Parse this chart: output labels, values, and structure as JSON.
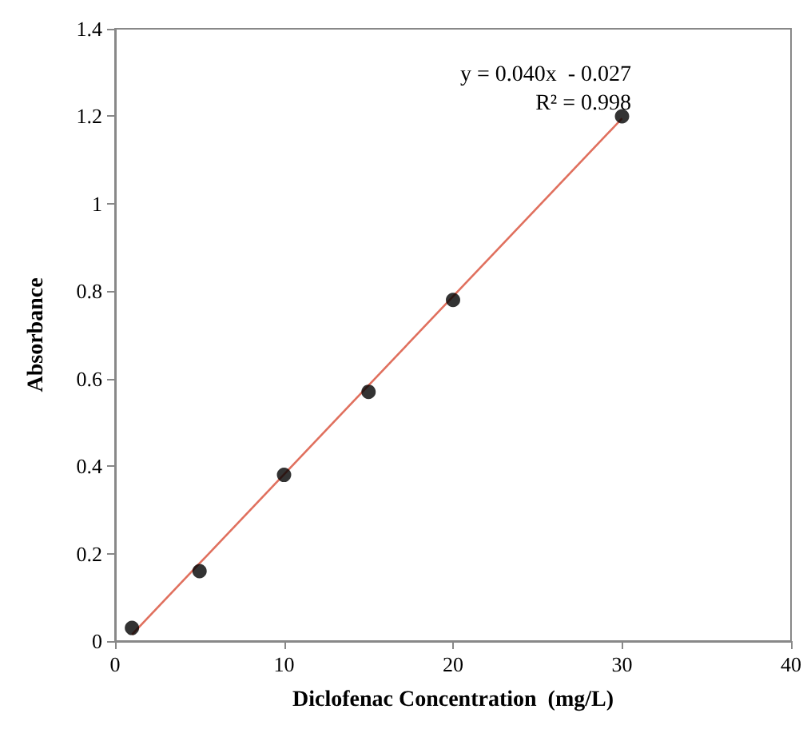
{
  "chart_data": {
    "type": "scatter",
    "xlabel": "Diclofenac Concentration  (mg/L)",
    "ylabel": "Absorbance",
    "xlim": [
      0,
      40
    ],
    "xticks": [
      0,
      10,
      20,
      30,
      40
    ],
    "ylim": [
      0,
      1.4
    ],
    "yticks": [
      0,
      0.2,
      0.4,
      0.6,
      0.8,
      1,
      1.2,
      1.4
    ],
    "grid": false,
    "series": [
      {
        "color": "#000000",
        "marker": "circle",
        "x": [
          1,
          5,
          10,
          15,
          20,
          30
        ],
        "values": [
          0.03,
          0.16,
          0.38,
          0.57,
          0.78,
          1.2
        ]
      },
      {
        "type": "line",
        "color": "#e0705e",
        "marker": "none",
        "line_style": "solid",
        "x": [
          1,
          30
        ],
        "values": [
          0.015,
          1.195
        ]
      }
    ],
    "annotations": [
      "y = 0.040x  - 0.027",
      "R² = 0.998"
    ]
  }
}
